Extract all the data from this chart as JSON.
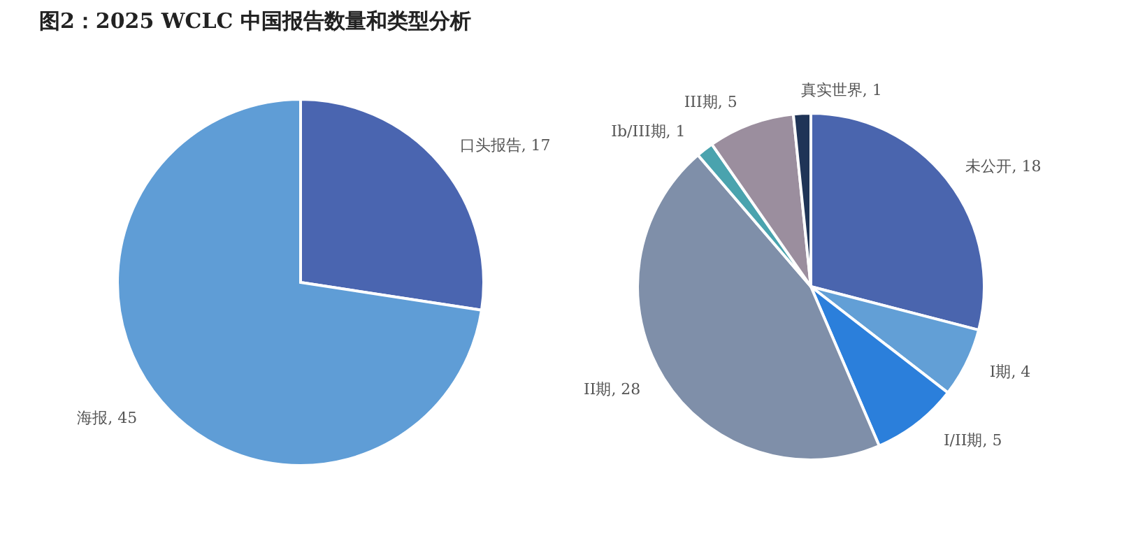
{
  "chart_data": [
    {
      "type": "pie",
      "title": "图2：2025 WCLC 中国报告数量和类型分析",
      "categories": [
        "口头报告",
        "海报"
      ],
      "values": [
        17,
        45
      ],
      "colors": [
        "#4a65b0",
        "#5f9dd6"
      ],
      "value_labels": [
        ", 17",
        ", 45"
      ]
    },
    {
      "type": "pie",
      "categories": [
        "未公开",
        "I期",
        "I/II期",
        "II期",
        "Ib/III期",
        "III期",
        "真实世界"
      ],
      "values": [
        18,
        4,
        5,
        28,
        1,
        5,
        1
      ],
      "colors": [
        "#4a65ae",
        "#629fd6",
        "#2b7fdb",
        "#7f8fa9",
        "#4aa3ae",
        "#9b8e9e",
        "#1f3457"
      ],
      "value_labels": [
        ", 18",
        ", 4",
        ", 5",
        ", 28",
        ", 1",
        ", 5",
        ", 1"
      ]
    }
  ]
}
